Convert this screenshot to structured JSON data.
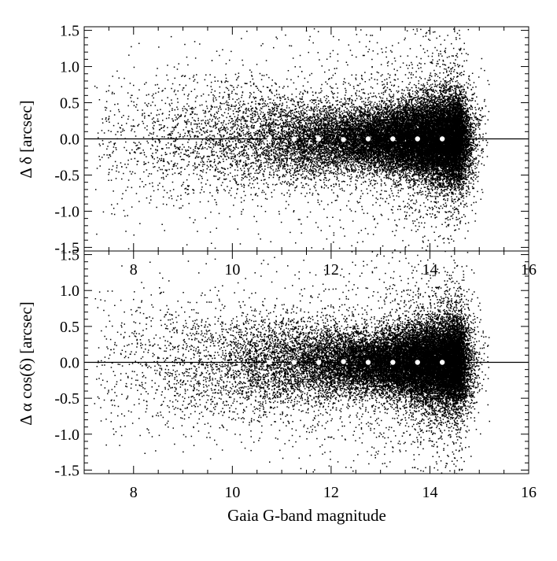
{
  "chart_data": [
    {
      "type": "scatter",
      "panel": "top",
      "title": "",
      "xlabel": "",
      "ylabel": "Δ δ [arcsec]",
      "xlim": [
        7,
        16
      ],
      "ylim": [
        -1.55,
        1.55
      ],
      "xticks": [
        8,
        10,
        12,
        14,
        16
      ],
      "yticks": [
        -1.5,
        -1.0,
        -0.5,
        0.0,
        0.5,
        1.0,
        1.5
      ],
      "xtick_labels": [
        "8",
        "10",
        "12",
        "14",
        "16"
      ],
      "ytick_labels": [
        "-1.5",
        "-1.0",
        "-0.5",
        "0.0",
        "0.5",
        "1.0",
        "1.5"
      ],
      "grid": false,
      "reference_line_y": 0.0,
      "point_color": "#000000",
      "binned_median_color": "#ffffff",
      "binned_medians": [
        {
          "x": 10.75,
          "y": 0.0
        },
        {
          "x": 11.25,
          "y": 0.0
        },
        {
          "x": 11.75,
          "y": 0.0
        },
        {
          "x": 12.25,
          "y": -0.01
        },
        {
          "x": 12.75,
          "y": 0.0
        },
        {
          "x": 13.25,
          "y": 0.0
        },
        {
          "x": 13.75,
          "y": 0.0
        },
        {
          "x": 14.25,
          "y": 0.0
        }
      ]
    },
    {
      "type": "scatter",
      "panel": "bottom",
      "title": "",
      "xlabel": "Gaia G-band magnitude",
      "ylabel": "Δ α cos(δ) [arcsec]",
      "xlim": [
        7,
        16
      ],
      "ylim": [
        -1.55,
        1.55
      ],
      "xticks": [
        8,
        10,
        12,
        14,
        16
      ],
      "yticks": [
        -1.5,
        -1.0,
        -0.5,
        0.0,
        0.5,
        1.0,
        1.5
      ],
      "xtick_labels": [
        "8",
        "10",
        "12",
        "14",
        "16"
      ],
      "ytick_labels": [
        "-1.5",
        "-1.0",
        "-0.5",
        "0.0",
        "0.5",
        "1.0",
        "1.5"
      ],
      "grid": false,
      "reference_line_y": 0.0,
      "point_color": "#000000",
      "binned_median_color": "#ffffff",
      "binned_medians": [
        {
          "x": 10.75,
          "y": 0.0
        },
        {
          "x": 11.25,
          "y": 0.0
        },
        {
          "x": 11.75,
          "y": 0.0
        },
        {
          "x": 12.25,
          "y": 0.01
        },
        {
          "x": 12.75,
          "y": 0.0
        },
        {
          "x": 13.25,
          "y": 0.0
        },
        {
          "x": 13.75,
          "y": 0.0
        },
        {
          "x": 14.25,
          "y": 0.0
        }
      ]
    }
  ]
}
